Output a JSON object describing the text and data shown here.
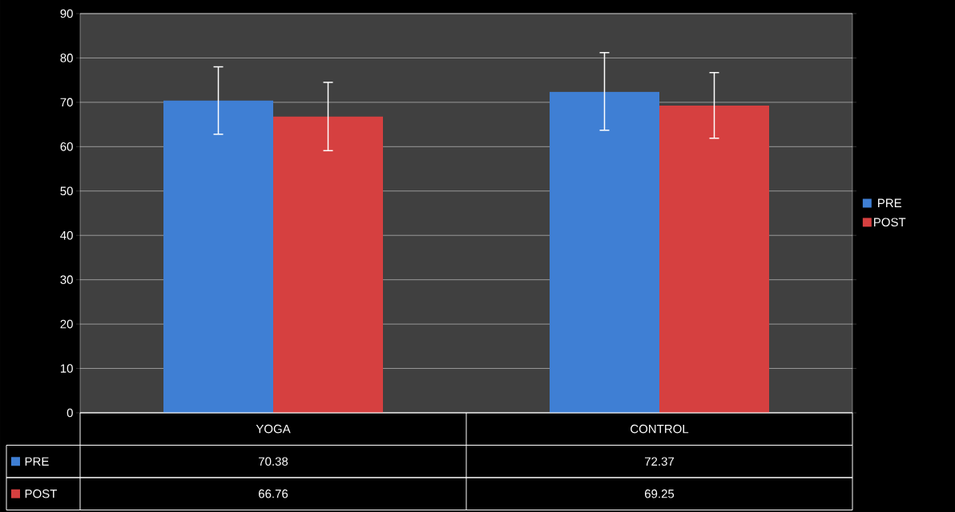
{
  "chart_data": {
    "type": "bar",
    "categories": [
      "YOGA",
      "CONTROL"
    ],
    "series": [
      {
        "name": "PRE",
        "color": "#3f7fd4",
        "values": [
          70.38,
          72.37
        ],
        "errors": [
          [
            62.8,
            78.0
          ],
          [
            63.7,
            81.2
          ]
        ]
      },
      {
        "name": "POST",
        "color": "#d64040",
        "values": [
          66.76,
          69.25
        ],
        "errors": [
          [
            59.1,
            74.5
          ],
          [
            61.9,
            76.7
          ]
        ]
      }
    ],
    "ylim": [
      0,
      90
    ],
    "yticks": [
      0,
      10,
      20,
      30,
      40,
      50,
      60,
      70,
      80,
      90
    ],
    "grid": "y",
    "legend": "right",
    "data_labels": true
  }
}
